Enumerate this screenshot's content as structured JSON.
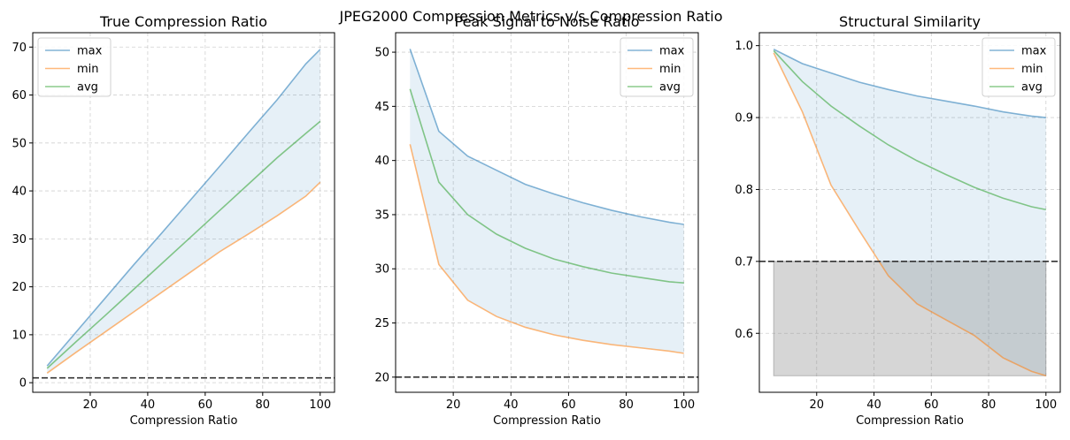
{
  "suptitle": "JPEG2000 Compression Metrics v/s Compression Ratio",
  "colors": {
    "max": "#1f77b4",
    "min": "#ff7f0e",
    "avg": "#2ca02c",
    "fill": "#1f77b4",
    "threshold_fill": "#808080",
    "threshold_line": "#333333",
    "grid": "#b0b0b0"
  },
  "chart_data": [
    {
      "type": "line",
      "title": "True Compression Ratio",
      "xlabel": "Compression Ratio",
      "ylabel": "",
      "x": [
        5,
        15,
        25,
        35,
        45,
        55,
        65,
        75,
        85,
        95,
        100
      ],
      "series": [
        {
          "name": "max",
          "values": [
            3.5,
            10.5,
            17.5,
            24.5,
            31.3,
            38.2,
            45.1,
            52.1,
            59.0,
            66.5,
            69.5
          ]
        },
        {
          "name": "min",
          "values": [
            2.0,
            6.3,
            10.5,
            14.7,
            18.9,
            23.1,
            27.3,
            31.0,
            34.8,
            38.9,
            41.8
          ]
        },
        {
          "name": "avg",
          "values": [
            3.0,
            8.5,
            13.9,
            19.4,
            24.9,
            30.4,
            35.9,
            41.4,
            46.9,
            52.0,
            54.5
          ]
        }
      ],
      "threshold": 1,
      "threshold_shade": false,
      "xlim": [
        0,
        105
      ],
      "ylim": [
        -2,
        73
      ],
      "xticks": [
        20,
        40,
        60,
        80,
        100
      ],
      "yticks": [
        0,
        10,
        20,
        30,
        40,
        50,
        60,
        70
      ],
      "tick_labels_y": [
        "0",
        "10",
        "20",
        "30",
        "40",
        "50",
        "60",
        "70"
      ],
      "legend": "top-left",
      "grid": true
    },
    {
      "type": "line",
      "title": "Peak Signal to Noise Ratio",
      "xlabel": "Compression Ratio",
      "ylabel": "",
      "x": [
        5,
        15,
        25,
        35,
        45,
        55,
        65,
        75,
        85,
        95,
        100
      ],
      "series": [
        {
          "name": "max",
          "values": [
            50.3,
            42.7,
            40.4,
            39.1,
            37.8,
            36.9,
            36.1,
            35.4,
            34.8,
            34.3,
            34.1
          ]
        },
        {
          "name": "min",
          "values": [
            41.5,
            30.4,
            27.1,
            25.6,
            24.6,
            23.9,
            23.4,
            23.0,
            22.7,
            22.4,
            22.2
          ]
        },
        {
          "name": "avg",
          "values": [
            46.6,
            38.0,
            35.0,
            33.2,
            31.9,
            30.9,
            30.2,
            29.6,
            29.2,
            28.8,
            28.7
          ]
        }
      ],
      "threshold": 20,
      "threshold_shade": false,
      "xlim": [
        0,
        105
      ],
      "ylim": [
        18.6,
        51.8
      ],
      "xticks": [
        20,
        40,
        60,
        80,
        100
      ],
      "yticks": [
        20,
        25,
        30,
        35,
        40,
        45,
        50
      ],
      "tick_labels_y": [
        "20",
        "25",
        "30",
        "35",
        "40",
        "45",
        "50"
      ],
      "legend": "top-right",
      "grid": true
    },
    {
      "type": "line",
      "title": "Structural Similarity",
      "xlabel": "Compression Ratio",
      "ylabel": "",
      "x": [
        5,
        15,
        25,
        35,
        45,
        55,
        65,
        75,
        85,
        95,
        100
      ],
      "series": [
        {
          "name": "max",
          "values": [
            0.995,
            0.975,
            0.962,
            0.949,
            0.939,
            0.93,
            0.923,
            0.916,
            0.908,
            0.902,
            0.9
          ]
        },
        {
          "name": "min",
          "values": [
            0.99,
            0.908,
            0.806,
            0.742,
            0.68,
            0.641,
            0.619,
            0.597,
            0.566,
            0.547,
            0.541
          ]
        },
        {
          "name": "avg",
          "values": [
            0.993,
            0.95,
            0.916,
            0.888,
            0.862,
            0.84,
            0.821,
            0.803,
            0.788,
            0.776,
            0.772
          ]
        }
      ],
      "threshold": 0.7,
      "threshold_shade": true,
      "threshold_shade_floor": 0.541,
      "xlim": [
        0,
        105
      ],
      "ylim": [
        0.518,
        1.018
      ],
      "xticks": [
        20,
        40,
        60,
        80,
        100
      ],
      "yticks": [
        0.6,
        0.7,
        0.8,
        0.9,
        1.0
      ],
      "tick_labels_y": [
        "0.6",
        "0.7",
        "0.8",
        "0.9",
        "1.0"
      ],
      "legend": "top-right",
      "grid": true
    }
  ]
}
